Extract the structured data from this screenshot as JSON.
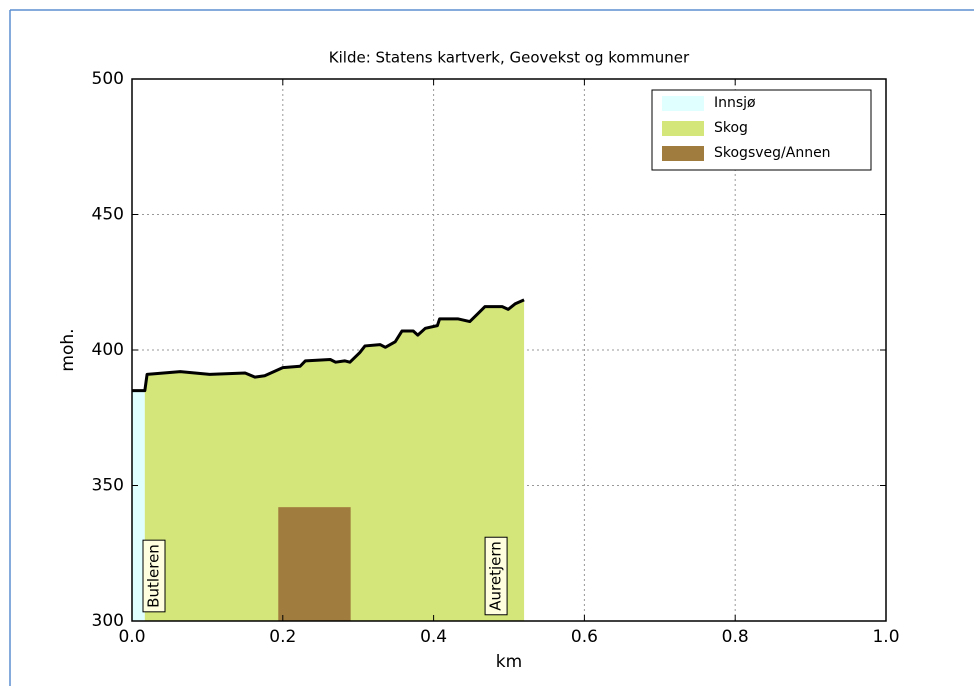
{
  "chart_data": {
    "type": "profile",
    "title": "Kilde: Statens kartverk, Geovekst og kommuner",
    "xlabel": "km",
    "ylabel": "moh.",
    "x": [
      0,
      0.017,
      0.02,
      0.064,
      0.103,
      0.15,
      0.163,
      0.176,
      0.2,
      0.223,
      0.23,
      0.263,
      0.27,
      0.282,
      0.289,
      0.302,
      0.309,
      0.329,
      0.336,
      0.349,
      0.358,
      0.373,
      0.379,
      0.389,
      0.405,
      0.408,
      0.432,
      0.448,
      0.459,
      0.468,
      0.491,
      0.499,
      0.508,
      0.52
    ],
    "y": [
      385,
      385,
      391,
      392,
      391,
      391.5,
      390,
      390.5,
      393.5,
      394,
      396,
      396.5,
      395.5,
      396,
      395.5,
      399,
      401.5,
      402,
      401,
      403,
      407,
      407,
      405.5,
      408,
      409,
      411.5,
      411.5,
      410.5,
      413.5,
      416,
      416,
      415,
      417,
      418.5
    ],
    "regions": [
      {
        "name": "Innsjø",
        "color": "#e0ffff",
        "x": [
          0,
          0.017
        ]
      },
      {
        "name": "Skog",
        "color": "#d4e57a",
        "x": [
          0.017,
          0.52
        ]
      },
      {
        "name": "Skogsveg/Annen",
        "color": "#a07c3e",
        "x": [
          0.194,
          0.29
        ],
        "top": 342
      }
    ],
    "annotations": [
      "Butleren",
      "Auretjern"
    ],
    "xlim": [
      0,
      1
    ],
    "ylim": [
      300,
      500
    ],
    "xticks": [
      {
        "value": 0,
        "label": "0.0"
      },
      0.2,
      0.4,
      0.6,
      0.8,
      {
        "value": 1,
        "label": "1.0"
      }
    ],
    "yticks": [
      300,
      350,
      400,
      450,
      500
    ],
    "grid": true,
    "legend": "upper right",
    "line_color": "#000000"
  }
}
